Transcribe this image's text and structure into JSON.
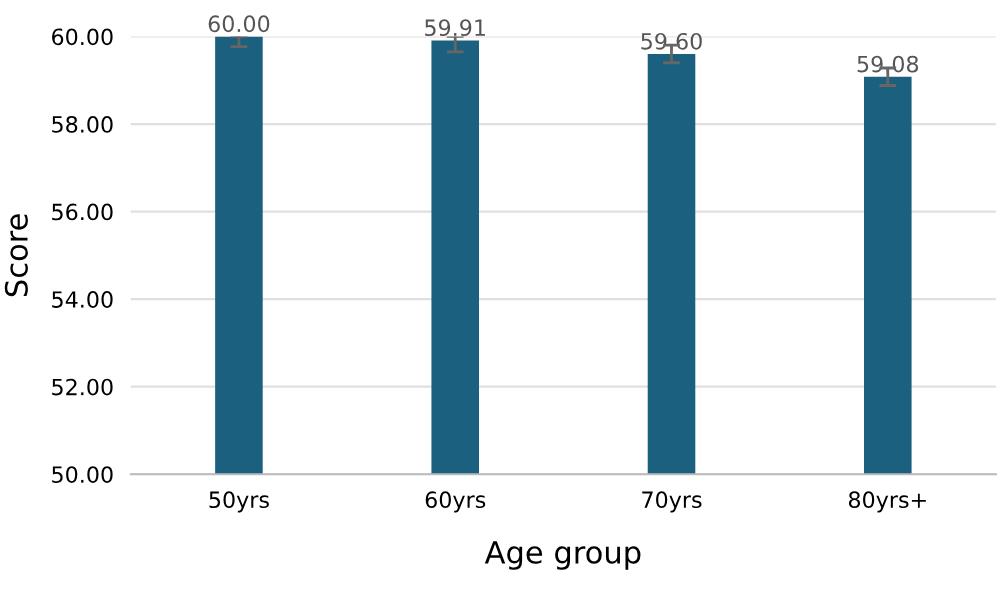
{
  "chart_data": {
    "type": "bar",
    "xlabel": "Age group",
    "ylabel": "Score",
    "categories": [
      "50yrs",
      "60yrs",
      "70yrs",
      "80yrs+"
    ],
    "values": [
      60.0,
      59.91,
      59.6,
      59.08
    ],
    "value_labels": [
      "60.00",
      "59.91",
      "59.60",
      "59.08"
    ],
    "errors": [
      [
        59.77,
        60.0
      ],
      [
        59.65,
        60.0
      ],
      [
        59.4,
        59.8
      ],
      [
        58.88,
        59.28
      ]
    ],
    "color": "#1c6080",
    "ylim": [
      50,
      60
    ],
    "yticks": [
      {
        "value": 50,
        "label": "50.00"
      },
      {
        "value": 52,
        "label": "52.00"
      },
      {
        "value": 54,
        "label": "54.00"
      },
      {
        "value": 56,
        "label": "56.00"
      },
      {
        "value": 58,
        "label": "58.00"
      },
      {
        "value": 60,
        "label": "60.00"
      }
    ],
    "grid": "y",
    "legend": false
  }
}
